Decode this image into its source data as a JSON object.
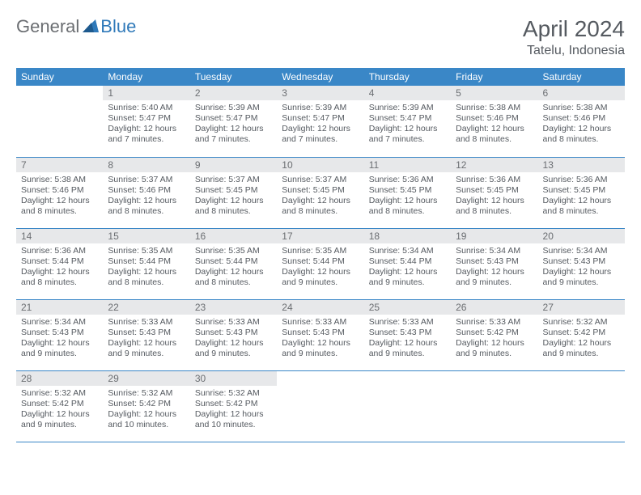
{
  "brand": {
    "part1": "General",
    "part2": "Blue"
  },
  "title": "April 2024",
  "location": "Tatelu, Indonesia",
  "colors": {
    "header_bg": "#3a87c7",
    "header_text": "#ffffff",
    "daynum_bg": "#e7e8ea",
    "daynum_text": "#6b6e72",
    "body_text": "#555a60",
    "row_border": "#3a87c7",
    "logo_gray": "#6b6e72",
    "logo_blue": "#2f79b9"
  },
  "weekdays": [
    "Sunday",
    "Monday",
    "Tuesday",
    "Wednesday",
    "Thursday",
    "Friday",
    "Saturday"
  ],
  "weeks": [
    [
      null,
      {
        "n": "1",
        "sr": "Sunrise: 5:40 AM",
        "ss": "Sunset: 5:47 PM",
        "d1": "Daylight: 12 hours",
        "d2": "and 7 minutes."
      },
      {
        "n": "2",
        "sr": "Sunrise: 5:39 AM",
        "ss": "Sunset: 5:47 PM",
        "d1": "Daylight: 12 hours",
        "d2": "and 7 minutes."
      },
      {
        "n": "3",
        "sr": "Sunrise: 5:39 AM",
        "ss": "Sunset: 5:47 PM",
        "d1": "Daylight: 12 hours",
        "d2": "and 7 minutes."
      },
      {
        "n": "4",
        "sr": "Sunrise: 5:39 AM",
        "ss": "Sunset: 5:47 PM",
        "d1": "Daylight: 12 hours",
        "d2": "and 7 minutes."
      },
      {
        "n": "5",
        "sr": "Sunrise: 5:38 AM",
        "ss": "Sunset: 5:46 PM",
        "d1": "Daylight: 12 hours",
        "d2": "and 8 minutes."
      },
      {
        "n": "6",
        "sr": "Sunrise: 5:38 AM",
        "ss": "Sunset: 5:46 PM",
        "d1": "Daylight: 12 hours",
        "d2": "and 8 minutes."
      }
    ],
    [
      {
        "n": "7",
        "sr": "Sunrise: 5:38 AM",
        "ss": "Sunset: 5:46 PM",
        "d1": "Daylight: 12 hours",
        "d2": "and 8 minutes."
      },
      {
        "n": "8",
        "sr": "Sunrise: 5:37 AM",
        "ss": "Sunset: 5:46 PM",
        "d1": "Daylight: 12 hours",
        "d2": "and 8 minutes."
      },
      {
        "n": "9",
        "sr": "Sunrise: 5:37 AM",
        "ss": "Sunset: 5:45 PM",
        "d1": "Daylight: 12 hours",
        "d2": "and 8 minutes."
      },
      {
        "n": "10",
        "sr": "Sunrise: 5:37 AM",
        "ss": "Sunset: 5:45 PM",
        "d1": "Daylight: 12 hours",
        "d2": "and 8 minutes."
      },
      {
        "n": "11",
        "sr": "Sunrise: 5:36 AM",
        "ss": "Sunset: 5:45 PM",
        "d1": "Daylight: 12 hours",
        "d2": "and 8 minutes."
      },
      {
        "n": "12",
        "sr": "Sunrise: 5:36 AM",
        "ss": "Sunset: 5:45 PM",
        "d1": "Daylight: 12 hours",
        "d2": "and 8 minutes."
      },
      {
        "n": "13",
        "sr": "Sunrise: 5:36 AM",
        "ss": "Sunset: 5:45 PM",
        "d1": "Daylight: 12 hours",
        "d2": "and 8 minutes."
      }
    ],
    [
      {
        "n": "14",
        "sr": "Sunrise: 5:36 AM",
        "ss": "Sunset: 5:44 PM",
        "d1": "Daylight: 12 hours",
        "d2": "and 8 minutes."
      },
      {
        "n": "15",
        "sr": "Sunrise: 5:35 AM",
        "ss": "Sunset: 5:44 PM",
        "d1": "Daylight: 12 hours",
        "d2": "and 8 minutes."
      },
      {
        "n": "16",
        "sr": "Sunrise: 5:35 AM",
        "ss": "Sunset: 5:44 PM",
        "d1": "Daylight: 12 hours",
        "d2": "and 8 minutes."
      },
      {
        "n": "17",
        "sr": "Sunrise: 5:35 AM",
        "ss": "Sunset: 5:44 PM",
        "d1": "Daylight: 12 hours",
        "d2": "and 9 minutes."
      },
      {
        "n": "18",
        "sr": "Sunrise: 5:34 AM",
        "ss": "Sunset: 5:44 PM",
        "d1": "Daylight: 12 hours",
        "d2": "and 9 minutes."
      },
      {
        "n": "19",
        "sr": "Sunrise: 5:34 AM",
        "ss": "Sunset: 5:43 PM",
        "d1": "Daylight: 12 hours",
        "d2": "and 9 minutes."
      },
      {
        "n": "20",
        "sr": "Sunrise: 5:34 AM",
        "ss": "Sunset: 5:43 PM",
        "d1": "Daylight: 12 hours",
        "d2": "and 9 minutes."
      }
    ],
    [
      {
        "n": "21",
        "sr": "Sunrise: 5:34 AM",
        "ss": "Sunset: 5:43 PM",
        "d1": "Daylight: 12 hours",
        "d2": "and 9 minutes."
      },
      {
        "n": "22",
        "sr": "Sunrise: 5:33 AM",
        "ss": "Sunset: 5:43 PM",
        "d1": "Daylight: 12 hours",
        "d2": "and 9 minutes."
      },
      {
        "n": "23",
        "sr": "Sunrise: 5:33 AM",
        "ss": "Sunset: 5:43 PM",
        "d1": "Daylight: 12 hours",
        "d2": "and 9 minutes."
      },
      {
        "n": "24",
        "sr": "Sunrise: 5:33 AM",
        "ss": "Sunset: 5:43 PM",
        "d1": "Daylight: 12 hours",
        "d2": "and 9 minutes."
      },
      {
        "n": "25",
        "sr": "Sunrise: 5:33 AM",
        "ss": "Sunset: 5:43 PM",
        "d1": "Daylight: 12 hours",
        "d2": "and 9 minutes."
      },
      {
        "n": "26",
        "sr": "Sunrise: 5:33 AM",
        "ss": "Sunset: 5:42 PM",
        "d1": "Daylight: 12 hours",
        "d2": "and 9 minutes."
      },
      {
        "n": "27",
        "sr": "Sunrise: 5:32 AM",
        "ss": "Sunset: 5:42 PM",
        "d1": "Daylight: 12 hours",
        "d2": "and 9 minutes."
      }
    ],
    [
      {
        "n": "28",
        "sr": "Sunrise: 5:32 AM",
        "ss": "Sunset: 5:42 PM",
        "d1": "Daylight: 12 hours",
        "d2": "and 9 minutes."
      },
      {
        "n": "29",
        "sr": "Sunrise: 5:32 AM",
        "ss": "Sunset: 5:42 PM",
        "d1": "Daylight: 12 hours",
        "d2": "and 10 minutes."
      },
      {
        "n": "30",
        "sr": "Sunrise: 5:32 AM",
        "ss": "Sunset: 5:42 PM",
        "d1": "Daylight: 12 hours",
        "d2": "and 10 minutes."
      },
      null,
      null,
      null,
      null
    ]
  ]
}
